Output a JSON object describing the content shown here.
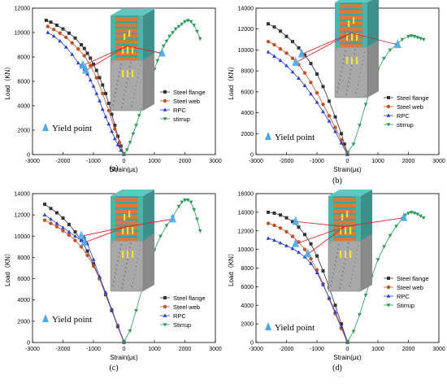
{
  "figure": {
    "panels": [
      "(a)",
      "(b)",
      "(c)",
      "(d)"
    ]
  },
  "legend_entries": [
    "Steel flange",
    "Steel web",
    "RPC",
    "stirrup"
  ],
  "series_colors": {
    "Steel flange": "#333333",
    "Steel web": "#c0502a",
    "RPC": "#2b3fc8",
    "stirrup": "#2e9a58"
  },
  "yield_marker_color": "#4aa8e8",
  "chart_data": [
    {
      "type": "line",
      "panel_label": "(a)",
      "xlabel": "Strain(με)",
      "ylabel": "Load（KN）",
      "xlim": [
        -3000,
        3000
      ],
      "ylim": [
        0,
        12000
      ],
      "xticks": [
        -3000,
        -2000,
        -1000,
        0,
        1000,
        2000,
        3000
      ],
      "yticks": [
        0,
        2000,
        4000,
        6000,
        8000,
        10000,
        12000
      ],
      "legend": [
        "Steel flange",
        "Steel web",
        "RPC",
        "stirrup"
      ],
      "legend_position": "right",
      "annotation": "Yield point",
      "series": [
        {
          "name": "Steel flange",
          "x": [
            -2550,
            -2400,
            -2200,
            -2000,
            -1800,
            -1600,
            -1400,
            -1300,
            -1200,
            -1100,
            -1000,
            -900,
            -800,
            -700,
            -600,
            -500,
            -400,
            -300,
            -200,
            -100,
            0
          ],
          "y": [
            11000,
            10850,
            10600,
            10300,
            9950,
            9550,
            9000,
            8700,
            8300,
            7900,
            7400,
            6900,
            6300,
            5700,
            5000,
            4200,
            3300,
            2400,
            1500,
            700,
            50
          ]
        },
        {
          "name": "Steel web",
          "x": [
            -2500,
            -2300,
            -2100,
            -1900,
            -1700,
            -1500,
            -1300,
            -1100,
            -900,
            -700,
            -500,
            -300,
            -150,
            0
          ],
          "y": [
            10500,
            10250,
            9950,
            9600,
            9150,
            8650,
            8100,
            7300,
            6300,
            5000,
            3600,
            2100,
            1000,
            50
          ]
        },
        {
          "name": "RPC",
          "x": [
            -2500,
            -2300,
            -2100,
            -1900,
            -1700,
            -1500,
            -1400,
            -1300,
            -1200,
            -1100,
            -1000,
            -900,
            -800,
            -700,
            -600,
            -500,
            -400,
            -300,
            -200,
            -100,
            0
          ],
          "y": [
            10000,
            9700,
            9300,
            8800,
            8200,
            7500,
            7300,
            7000,
            6600,
            6100,
            5600,
            5000,
            4400,
            3700,
            3100,
            2500,
            1900,
            1300,
            800,
            350,
            0
          ]
        },
        {
          "name": "stirrup",
          "x": [
            0,
            100,
            200,
            300,
            400,
            500,
            600,
            700,
            800,
            900,
            1000,
            1100,
            1200,
            1300,
            1400,
            1500,
            1600,
            1700,
            1800,
            1900,
            2000,
            2100,
            2200,
            2300,
            2400,
            2500
          ],
          "y": [
            50,
            400,
            1000,
            1700,
            2400,
            3200,
            4000,
            4800,
            5500,
            6300,
            7000,
            7700,
            8300,
            8900,
            9300,
            9700,
            10000,
            10300,
            10500,
            10700,
            10900,
            11000,
            10900,
            10600,
            10100,
            9500
          ]
        }
      ],
      "yield_points": [
        [
          -1350,
          7300
        ],
        [
          -1250,
          6900
        ],
        [
          1250,
          8300
        ]
      ]
    },
    {
      "type": "line",
      "panel_label": "(b)",
      "xlabel": "Strain(με)",
      "ylabel": "Load（KN）",
      "xlim": [
        -3000,
        3000
      ],
      "ylim": [
        0,
        14000
      ],
      "xticks": [
        -3000,
        -2000,
        -1000,
        0,
        1000,
        2000,
        3000
      ],
      "yticks": [
        0,
        2000,
        4000,
        6000,
        8000,
        10000,
        12000,
        14000
      ],
      "legend": [
        "Steel flange",
        "Steel web",
        "RPC",
        "stirrup"
      ],
      "legend_position": "right",
      "annotation": "Yield point",
      "series": [
        {
          "name": "Steel flange",
          "x": [
            -2600,
            -2400,
            -2200,
            -2000,
            -1800,
            -1600,
            -1400,
            -1200,
            -1000,
            -800,
            -600,
            -400,
            -200,
            -100,
            0
          ],
          "y": [
            12500,
            12200,
            11800,
            11300,
            10800,
            10200,
            9500,
            8700,
            7700,
            6500,
            5100,
            3600,
            2000,
            1000,
            200
          ]
        },
        {
          "name": "Steel web",
          "x": [
            -2600,
            -2400,
            -2200,
            -2000,
            -1800,
            -1600,
            -1400,
            -1200,
            -1000,
            -800,
            -600,
            -400,
            -200,
            0
          ],
          "y": [
            10800,
            10500,
            10100,
            9700,
            9200,
            8600,
            7800,
            6900,
            5900,
            4800,
            3700,
            2600,
            1400,
            100
          ]
        },
        {
          "name": "RPC",
          "x": [
            -2600,
            -2400,
            -2200,
            -2000,
            -1800,
            -1600,
            -1400,
            -1200,
            -1000,
            -800,
            -600,
            -400,
            -200,
            0
          ],
          "y": [
            9800,
            9400,
            9000,
            8500,
            7900,
            7300,
            6600,
            5800,
            5000,
            4100,
            3200,
            2200,
            1100,
            0
          ]
        },
        {
          "name": "stirrup",
          "x": [
            0,
            200,
            400,
            600,
            800,
            1000,
            1200,
            1400,
            1600,
            1800,
            2000,
            2100,
            2200,
            2300,
            2400,
            2500
          ],
          "y": [
            200,
            1000,
            2800,
            4800,
            6600,
            8100,
            9200,
            10000,
            10500,
            11000,
            11300,
            11350,
            11300,
            11200,
            11100,
            11000
          ]
        }
      ],
      "yield_points": [
        [
          -1700,
          8800
        ],
        [
          -1500,
          9600
        ],
        [
          1650,
          10500
        ]
      ]
    },
    {
      "type": "line",
      "panel_label": "(c)",
      "xlabel": "Strain(με)",
      "ylabel": "Load（KN）",
      "xlim": [
        -3000,
        3000
      ],
      "ylim": [
        0,
        14000
      ],
      "xticks": [
        -3000,
        -2000,
        -1000,
        0,
        1000,
        2000,
        3000
      ],
      "yticks": [
        0,
        2000,
        4000,
        6000,
        8000,
        10000,
        12000,
        14000
      ],
      "legend": [
        "Steel flange",
        "Steel web",
        "RPC",
        "Stirrup"
      ],
      "legend_position": "right",
      "annotation": "Yield point",
      "series": [
        {
          "name": "Steel flange",
          "x": [
            -2600,
            -2400,
            -2200,
            -2000,
            -1800,
            -1600,
            -1400,
            -1200,
            -1000,
            -800,
            -600,
            -400,
            -200,
            0
          ],
          "y": [
            13000,
            12600,
            12200,
            11700,
            11100,
            10400,
            9600,
            8600,
            7400,
            6000,
            4500,
            3000,
            1500,
            100
          ]
        },
        {
          "name": "Steel web",
          "x": [
            -2600,
            -2400,
            -2200,
            -2000,
            -1800,
            -1600,
            -1400,
            -1200,
            -1000,
            -800,
            -600,
            -400,
            -200,
            0
          ],
          "y": [
            11500,
            11200,
            10900,
            10500,
            10100,
            9600,
            9000,
            8200,
            7200,
            6000,
            4600,
            3100,
            1600,
            100
          ]
        },
        {
          "name": "RPC",
          "x": [
            -2600,
            -2400,
            -2200,
            -2000,
            -1800,
            -1600,
            -1400,
            -1300,
            -1200,
            -1000,
            -800,
            -600,
            -400,
            -200,
            0
          ],
          "y": [
            12000,
            11600,
            11200,
            10800,
            10400,
            10000,
            9600,
            9900,
            9300,
            7800,
            6200,
            4700,
            3100,
            1500,
            0
          ]
        },
        {
          "name": "Stirrup",
          "x": [
            0,
            200,
            400,
            600,
            800,
            1000,
            1200,
            1400,
            1600,
            1800,
            1900,
            2000,
            2100,
            2200,
            2300,
            2400,
            2500
          ],
          "y": [
            100,
            1100,
            3000,
            5100,
            7000,
            8700,
            10000,
            11000,
            11800,
            12800,
            13200,
            13400,
            13400,
            13200,
            12500,
            11600,
            10500
          ]
        }
      ],
      "yield_points": [
        [
          -1400,
          10000
        ],
        [
          -1300,
          9400
        ],
        [
          1600,
          11600
        ]
      ]
    },
    {
      "type": "line",
      "panel_label": "(d)",
      "xlabel": "Strain(με)",
      "ylabel": "Load（KN）",
      "xlim": [
        -3000,
        3000
      ],
      "ylim": [
        0,
        16000
      ],
      "xticks": [
        -3000,
        -2000,
        -1000,
        0,
        1000,
        2000,
        3000
      ],
      "yticks": [
        0,
        2000,
        4000,
        6000,
        8000,
        10000,
        12000,
        14000,
        16000
      ],
      "legend": [
        "Steel flange",
        "Steel web",
        "RPC",
        "Stirrup"
      ],
      "legend_position": "right",
      "annotation": "Yield point",
      "series": [
        {
          "name": "Steel flange",
          "x": [
            -2600,
            -2400,
            -2200,
            -2000,
            -1800,
            -1600,
            -1400,
            -1200,
            -1000,
            -800,
            -600,
            -400,
            -200,
            0
          ],
          "y": [
            14000,
            13900,
            13700,
            13400,
            13000,
            12400,
            11600,
            10600,
            9300,
            7700,
            5900,
            4000,
            2000,
            100
          ]
        },
        {
          "name": "Steel web",
          "x": [
            -2600,
            -2400,
            -2200,
            -2000,
            -1800,
            -1600,
            -1400,
            -1200,
            -1000,
            -800,
            -600,
            -400,
            -200,
            0
          ],
          "y": [
            12800,
            12600,
            12300,
            11900,
            11400,
            10800,
            10000,
            9000,
            7800,
            6300,
            4700,
            3100,
            1500,
            100
          ]
        },
        {
          "name": "RPC",
          "x": [
            -2600,
            -2400,
            -2200,
            -2000,
            -1800,
            -1600,
            -1400,
            -1200,
            -1000,
            -800,
            -600,
            -400,
            -200,
            0
          ],
          "y": [
            11200,
            11000,
            10700,
            10400,
            10100,
            9700,
            9200,
            8500,
            7500,
            6200,
            4800,
            3300,
            1700,
            0
          ]
        },
        {
          "name": "Stirrup",
          "x": [
            0,
            200,
            400,
            600,
            800,
            1000,
            1200,
            1400,
            1600,
            1800,
            1900,
            2000,
            2100,
            2200,
            2300,
            2400,
            2500
          ],
          "y": [
            100,
            1200,
            3000,
            5100,
            7100,
            8900,
            10300,
            11500,
            12500,
            13300,
            13700,
            13900,
            14000,
            13900,
            13800,
            13600,
            13400
          ]
        }
      ],
      "yield_points": [
        [
          -1700,
          13000
        ],
        [
          -1700,
          10600
        ],
        [
          -1300,
          9500
        ],
        [
          1850,
          13400
        ]
      ]
    }
  ]
}
